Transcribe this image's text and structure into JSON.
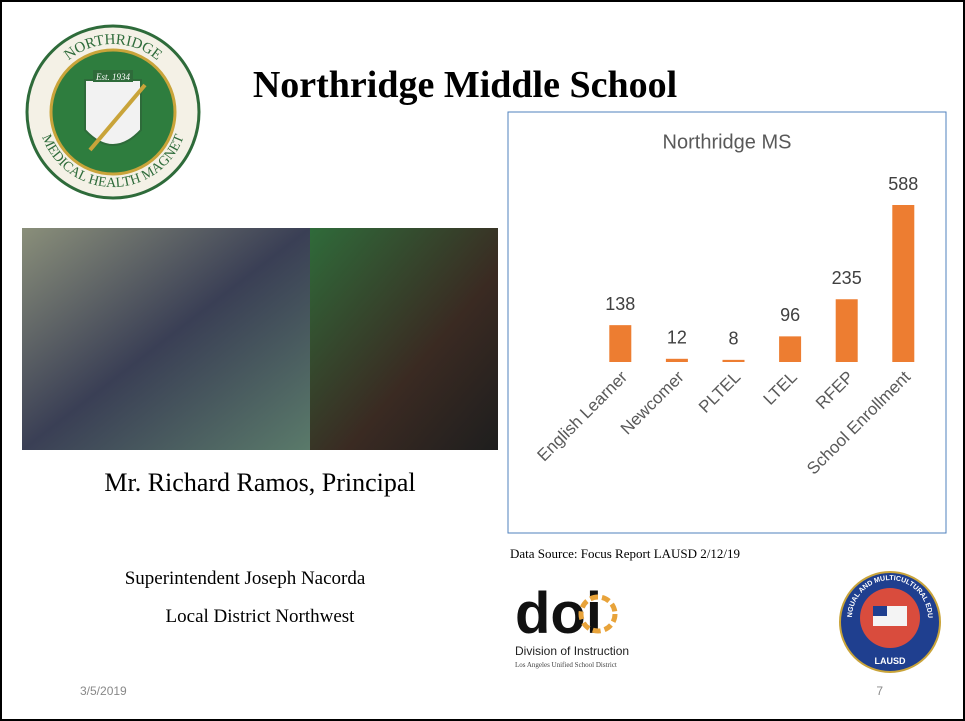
{
  "title": "Northridge Middle School",
  "logo": {
    "top": "NORTHRIDGE",
    "bottom": "MEDICAL HEALTH MAGNET",
    "est": "Est. 1934"
  },
  "principal": "Mr. Richard Ramos, Principal",
  "superintendent": "Superintendent Joseph Nacorda",
  "district": "Local District Northwest",
  "source": "Data Source: Focus Report LAUSD 2/12/19",
  "doi": {
    "mark": "doi",
    "name": "Division of Instruction",
    "sub": "Los Angeles Unified School District"
  },
  "lausd": {
    "ring": "MULTILINGUAL AND MULTICULTURAL EDUCATION",
    "name": "LAUSD"
  },
  "date": "3/5/2019",
  "page": "7",
  "chart_data": {
    "type": "bar",
    "title": "Northridge MS",
    "categories": [
      "English Learner",
      "Newcomer",
      "PLTEL",
      "LTEL",
      "RFEP",
      "School Enrollment"
    ],
    "values": [
      138,
      12,
      8,
      96,
      235,
      588
    ],
    "color": "#ed7d31"
  }
}
